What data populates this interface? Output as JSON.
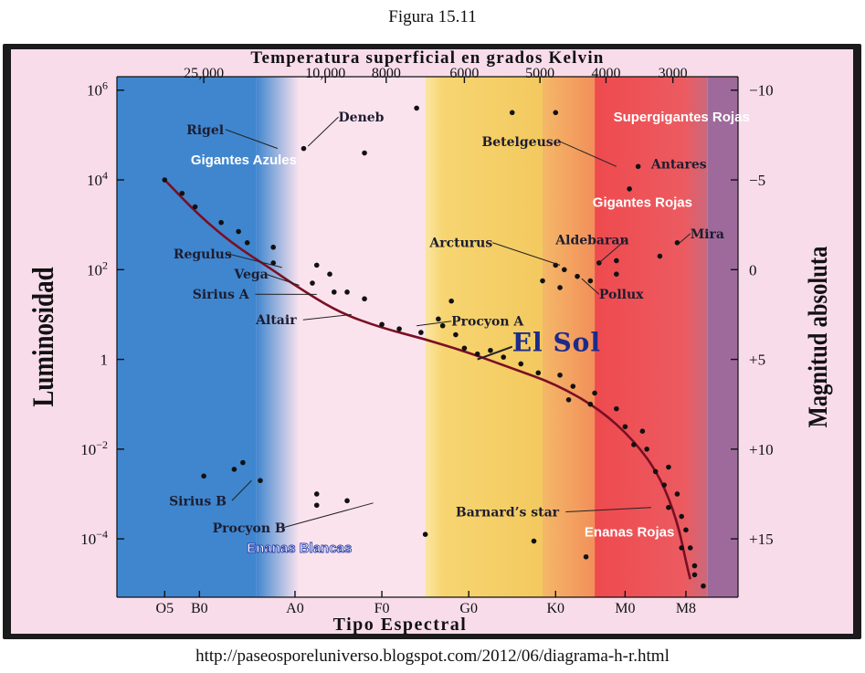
{
  "figure": {
    "title": "Figura 15.11",
    "source": "http://paseosporeluniverso.blogspot.com/2012/06/diagrama-h-r.html"
  },
  "colors": {
    "blue": "#3f86cf",
    "pale": "#fbe3ee",
    "yellow": "#f7d571",
    "orange": "#f6a864",
    "red": "#ee4a4e",
    "purple": "#9e6a9b",
    "curve": "#7a0f24",
    "dots": "#111111",
    "white_label": "#ffffff",
    "sol_label": "#1c2a8a"
  },
  "chart_data": {
    "type": "scatter",
    "title": "",
    "top_axis": {
      "title": "Temperatura superficial en grados Kelvin",
      "ticks": [
        {
          "label": "25,000",
          "spectral_pos": 0.45
        },
        {
          "label": "10,000",
          "spectral_pos": 1.85
        },
        {
          "label": "8000",
          "spectral_pos": 2.55
        },
        {
          "label": "6000",
          "spectral_pos": 3.45
        },
        {
          "label": "5000",
          "spectral_pos": 4.32
        },
        {
          "label": "4000",
          "spectral_pos": 5.08
        },
        {
          "label": "3000",
          "spectral_pos": 5.85
        }
      ]
    },
    "bottom_axis": {
      "title": "Tipo Espectral",
      "ticks": [
        {
          "label": "O5",
          "spectral_pos": 0.0
        },
        {
          "label": "B0",
          "spectral_pos": 0.4
        },
        {
          "label": "A0",
          "spectral_pos": 1.5
        },
        {
          "label": "F0",
          "spectral_pos": 2.5
        },
        {
          "label": "G0",
          "spectral_pos": 3.5
        },
        {
          "label": "K0",
          "spectral_pos": 4.5
        },
        {
          "label": "M0",
          "spectral_pos": 5.3
        },
        {
          "label": "M8",
          "spectral_pos": 6.0
        }
      ],
      "range": [
        -0.55,
        6.6
      ]
    },
    "left_axis": {
      "title": "Luminosidad",
      "ticks": [
        {
          "base": "10",
          "exp": "6",
          "log_l": 6
        },
        {
          "base": "10",
          "exp": "4",
          "log_l": 4
        },
        {
          "base": "10",
          "exp": "2",
          "log_l": 2
        },
        {
          "base": "1",
          "exp": "",
          "log_l": 0
        },
        {
          "base": "10",
          "exp": "−2",
          "log_l": -2
        },
        {
          "base": "10",
          "exp": "−4",
          "log_l": -4
        }
      ],
      "range": [
        -5.3,
        6.3
      ]
    },
    "right_axis": {
      "title": "Magnitud absoluta",
      "ticks": [
        {
          "label": "−10",
          "log_l": 6
        },
        {
          "label": "−5",
          "log_l": 4
        },
        {
          "label": "0",
          "log_l": 2
        },
        {
          "label": "+5",
          "log_l": 0
        },
        {
          "label": "+10",
          "log_l": -2
        },
        {
          "label": "+15",
          "log_l": -4
        }
      ]
    },
    "bands": [
      {
        "from": -0.55,
        "to": 1.05,
        "color": "blue"
      },
      {
        "from": 1.05,
        "to": 1.55,
        "color": "blue_fade"
      },
      {
        "from": 3.0,
        "to": 4.35,
        "color": "yellow"
      },
      {
        "from": 4.35,
        "to": 4.95,
        "color": "orange"
      },
      {
        "from": 4.95,
        "to": 6.25,
        "color": "red"
      },
      {
        "from": 6.25,
        "to": 6.6,
        "color": "purple"
      }
    ],
    "main_sequence_curve": [
      [
        0.0,
        4.0
      ],
      [
        0.4,
        3.2
      ],
      [
        0.8,
        2.55
      ],
      [
        1.2,
        2.05
      ],
      [
        1.5,
        1.65
      ],
      [
        2.0,
        1.05
      ],
      [
        2.5,
        0.7
      ],
      [
        3.0,
        0.45
      ],
      [
        3.5,
        0.15
      ],
      [
        4.0,
        -0.2
      ],
      [
        4.5,
        -0.55
      ],
      [
        5.0,
        -1.1
      ],
      [
        5.4,
        -1.8
      ],
      [
        5.7,
        -2.6
      ],
      [
        5.9,
        -3.6
      ],
      [
        6.0,
        -4.5
      ],
      [
        6.05,
        -4.9
      ]
    ],
    "stars": [
      {
        "x": 2.9,
        "y": 5.6
      },
      {
        "x": 4.0,
        "y": 5.5
      },
      {
        "x": 4.5,
        "y": 5.5
      },
      {
        "x": 1.6,
        "y": 4.7
      },
      {
        "x": 2.3,
        "y": 4.6
      },
      {
        "x": 0.0,
        "y": 4.0
      },
      {
        "x": 0.2,
        "y": 3.7
      },
      {
        "x": 0.35,
        "y": 3.4
      },
      {
        "x": 0.65,
        "y": 3.05
      },
      {
        "x": 0.85,
        "y": 2.85
      },
      {
        "x": 0.95,
        "y": 2.6
      },
      {
        "x": 1.25,
        "y": 2.5
      },
      {
        "x": 1.25,
        "y": 2.15
      },
      {
        "x": 1.75,
        "y": 2.1
      },
      {
        "x": 1.9,
        "y": 1.9
      },
      {
        "x": 1.7,
        "y": 1.7
      },
      {
        "x": 1.95,
        "y": 1.5
      },
      {
        "x": 2.1,
        "y": 1.5
      },
      {
        "x": 2.3,
        "y": 1.35
      },
      {
        "x": 2.5,
        "y": 0.78
      },
      {
        "x": 2.7,
        "y": 0.68
      },
      {
        "x": 2.95,
        "y": 0.6
      },
      {
        "x": 3.2,
        "y": 0.75
      },
      {
        "x": 3.35,
        "y": 0.55
      },
      {
        "x": 3.45,
        "y": 0.25
      },
      {
        "x": 3.6,
        "y": 0.12
      },
      {
        "x": 3.75,
        "y": 0.2
      },
      {
        "x": 3.9,
        "y": 0.05
      },
      {
        "x": 4.1,
        "y": -0.1
      },
      {
        "x": 4.3,
        "y": -0.3
      },
      {
        "x": 4.55,
        "y": -0.35
      },
      {
        "x": 4.7,
        "y": -0.6
      },
      {
        "x": 4.65,
        "y": -0.9
      },
      {
        "x": 4.95,
        "y": -0.75
      },
      {
        "x": 4.9,
        "y": -1.0
      },
      {
        "x": 5.2,
        "y": -1.1
      },
      {
        "x": 5.3,
        "y": -1.5
      },
      {
        "x": 5.5,
        "y": -1.6
      },
      {
        "x": 5.4,
        "y": -1.9
      },
      {
        "x": 5.55,
        "y": -2.0
      },
      {
        "x": 5.65,
        "y": -2.5
      },
      {
        "x": 5.8,
        "y": -2.4
      },
      {
        "x": 5.75,
        "y": -2.8
      },
      {
        "x": 5.9,
        "y": -3.0
      },
      {
        "x": 5.8,
        "y": -3.3
      },
      {
        "x": 5.95,
        "y": -3.5
      },
      {
        "x": 6.0,
        "y": -3.8
      },
      {
        "x": 6.05,
        "y": -4.2
      },
      {
        "x": 6.1,
        "y": -4.6
      },
      {
        "x": 5.95,
        "y": -4.2
      },
      {
        "x": 6.1,
        "y": -4.8
      },
      {
        "x": 6.2,
        "y": -5.05
      },
      {
        "x": 3.3,
        "y": 1.3
      },
      {
        "x": 3.15,
        "y": 0.9
      },
      {
        "x": 4.5,
        "y": 2.1
      },
      {
        "x": 4.6,
        "y": 2.0
      },
      {
        "x": 4.75,
        "y": 1.85
      },
      {
        "x": 4.9,
        "y": 1.75
      },
      {
        "x": 4.55,
        "y": 1.6
      },
      {
        "x": 4.35,
        "y": 1.75
      },
      {
        "x": 5.0,
        "y": 2.15
      },
      {
        "x": 5.2,
        "y": 2.2
      },
      {
        "x": 5.2,
        "y": 1.9
      },
      {
        "x": 5.45,
        "y": 4.3
      },
      {
        "x": 5.35,
        "y": 3.8
      },
      {
        "x": 5.7,
        "y": 2.3
      },
      {
        "x": 5.9,
        "y": 2.6
      },
      {
        "x": 0.45,
        "y": -2.6
      },
      {
        "x": 0.8,
        "y": -2.45
      },
      {
        "x": 0.9,
        "y": -2.3
      },
      {
        "x": 1.1,
        "y": -2.7
      },
      {
        "x": 1.75,
        "y": -3.0
      },
      {
        "x": 1.75,
        "y": -3.25
      },
      {
        "x": 2.1,
        "y": -3.15
      },
      {
        "x": 3.0,
        "y": -3.9
      },
      {
        "x": 4.25,
        "y": -4.05
      },
      {
        "x": 4.85,
        "y": -4.4
      }
    ],
    "labels": [
      {
        "id": "rigel",
        "text": "Rigel",
        "x": 0.25,
        "y": 5.02,
        "anchor": "start",
        "cls": "name",
        "px": 1.3,
        "py": 4.7
      },
      {
        "id": "deneb",
        "text": "Deneb",
        "x": 2.0,
        "y": 5.3,
        "anchor": "start",
        "cls": "name",
        "px": 1.65,
        "py": 4.75
      },
      {
        "id": "betelgeuse",
        "text": "Betelgeuse",
        "x": 3.65,
        "y": 4.75,
        "anchor": "start",
        "cls": "name",
        "px": 5.2,
        "py": 4.3
      },
      {
        "id": "antares",
        "text": "Antares",
        "x": 5.6,
        "y": 4.25,
        "anchor": "start",
        "cls": "name"
      },
      {
        "id": "arcturus",
        "text": "Arcturus",
        "x": 3.05,
        "y": 2.5,
        "anchor": "start",
        "cls": "name",
        "px": 4.55,
        "py": 2.1
      },
      {
        "id": "aldebaran",
        "text": "Aldebaran",
        "x": 4.5,
        "y": 2.57,
        "anchor": "start",
        "cls": "name",
        "px": 5.0,
        "py": 2.15
      },
      {
        "id": "mira",
        "text": "Mira",
        "x": 6.05,
        "y": 2.7,
        "anchor": "start",
        "cls": "name",
        "px": 5.9,
        "py": 2.55
      },
      {
        "id": "pollux",
        "text": "Pollux",
        "x": 5.0,
        "y": 1.35,
        "anchor": "start",
        "cls": "name",
        "px": 4.8,
        "py": 1.8
      },
      {
        "id": "regulus",
        "text": "Regulus",
        "x": 0.1,
        "y": 2.25,
        "anchor": "start",
        "cls": "name",
        "px": 1.35,
        "py": 2.05
      },
      {
        "id": "vega",
        "text": "Vega",
        "x": 0.8,
        "y": 1.8,
        "anchor": "start",
        "cls": "name",
        "px": 1.55,
        "py": 1.65
      },
      {
        "id": "sirius-a",
        "text": "Sirius A",
        "x": 0.32,
        "y": 1.35,
        "anchor": "start",
        "cls": "name",
        "px": 1.75,
        "py": 1.45
      },
      {
        "id": "altair",
        "text": "Altair",
        "x": 1.05,
        "y": 0.78,
        "anchor": "start",
        "cls": "name",
        "px": 2.15,
        "py": 1.0
      },
      {
        "id": "procyon-a",
        "text": "Procyon A",
        "x": 3.3,
        "y": 0.75,
        "anchor": "start",
        "cls": "name",
        "px": 2.9,
        "py": 0.75
      },
      {
        "id": "el-sol",
        "text": "El Sol",
        "x": 4.0,
        "y": 0.18,
        "anchor": "start",
        "cls": "sol",
        "px": 3.6,
        "py": 0.0
      },
      {
        "id": "sirius-b",
        "text": "Sirius B",
        "x": 0.05,
        "y": -3.25,
        "anchor": "start",
        "cls": "name",
        "px": 1.0,
        "py": -2.7
      },
      {
        "id": "procyon-b",
        "text": "Procyon B",
        "x": 0.55,
        "y": -3.85,
        "anchor": "start",
        "cls": "name",
        "px": 2.4,
        "py": -3.2
      },
      {
        "id": "barnards-star",
        "text": "Barnard’s star",
        "x": 3.35,
        "y": -3.5,
        "anchor": "start",
        "cls": "name",
        "px": 5.6,
        "py": -3.3
      },
      {
        "id": "supergigantes-rojas",
        "text": "Supergigantes Rojas",
        "x": 5.95,
        "y": 5.3,
        "anchor": "middle",
        "cls": "white"
      },
      {
        "id": "gigantes-azules",
        "text": "Gigantes Azules",
        "x": 0.3,
        "y": 4.35,
        "anchor": "start",
        "cls": "white"
      },
      {
        "id": "gigantes-rojas",
        "text": "Gigantes Rojas",
        "x": 5.5,
        "y": 3.4,
        "anchor": "middle",
        "cls": "white"
      },
      {
        "id": "enanas-blancas",
        "text": "Enanas Blancas",
        "x": 1.55,
        "y": -4.3,
        "anchor": "middle",
        "cls": "blanca"
      },
      {
        "id": "enanas-rojas",
        "text": "Enanas Rojas",
        "x": 5.35,
        "y": -3.95,
        "anchor": "middle",
        "cls": "white"
      }
    ]
  }
}
